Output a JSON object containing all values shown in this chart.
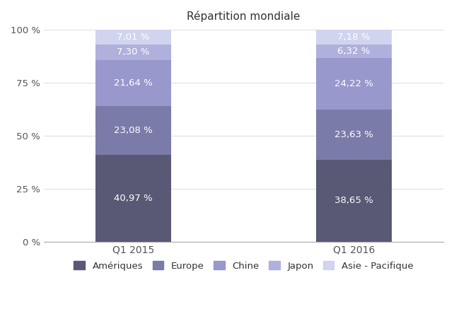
{
  "title": "Répartition mondiale",
  "categories": [
    "Q1 2015",
    "Q1 2016"
  ],
  "series": [
    {
      "label": "Amériques",
      "values": [
        40.97,
        38.65
      ],
      "color": "#595975"
    },
    {
      "label": "Europe",
      "values": [
        23.08,
        23.63
      ],
      "color": "#7b7baa"
    },
    {
      "label": "Chine",
      "values": [
        21.64,
        24.22
      ],
      "color": "#9898cc"
    },
    {
      "label": "Japon",
      "values": [
        7.3,
        6.32
      ],
      "color": "#b0b0dd"
    },
    {
      "label": "Asie - Pacifique",
      "values": [
        7.01,
        7.18
      ],
      "color": "#d0d4ee"
    }
  ],
  "bar_width": 0.55,
  "bar_positions": [
    1.0,
    2.6
  ],
  "xlim": [
    0.35,
    3.25
  ],
  "ylim": [
    0,
    100
  ],
  "yticks": [
    0,
    25,
    50,
    75,
    100
  ],
  "ytick_labels": [
    "0 %",
    "25 %",
    "50 %",
    "75 %",
    "100 %"
  ],
  "label_color": "#ffffff",
  "label_fontsize": 9.5,
  "title_fontsize": 11,
  "legend_fontsize": 9.5,
  "background_color": "#ffffff",
  "grid_color": "#e0e0e0"
}
